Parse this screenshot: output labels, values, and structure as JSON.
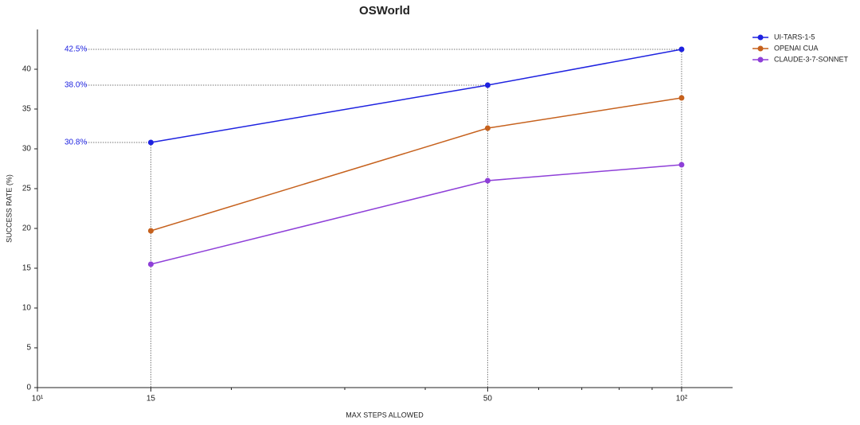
{
  "chart_data": {
    "type": "line",
    "title": "OSWorld",
    "x_label": "MAX STEPS ALLOWED",
    "y_label": "SUCCESS RATE (%)",
    "x": [
      15,
      50,
      100
    ],
    "xscale": "log",
    "xlim": [
      10,
      120
    ],
    "xticks": [
      {
        "value": 10,
        "label": "10¹"
      },
      15,
      50,
      {
        "value": 100,
        "label": "10²"
      }
    ],
    "xminor_ticks": [
      20,
      30,
      40,
      60,
      70,
      80,
      90
    ],
    "ylim": [
      0,
      45
    ],
    "yticks": [
      0,
      5,
      10,
      15,
      20,
      25,
      30,
      35,
      40
    ],
    "grid": false,
    "legend": "upper right",
    "series": [
      {
        "name": "UI-TARS-1-5",
        "color": "#1e22e0",
        "values": [
          30.8,
          38.0,
          42.5
        ],
        "value_labels": [
          "30.8%",
          "38.0%",
          "42.5%"
        ]
      },
      {
        "name": "OPENAI CUA",
        "color": "#c6611d",
        "values": [
          19.7,
          32.6,
          36.4
        ]
      },
      {
        "name": "CLAUDE-3-7-SONNET",
        "color": "#8e3fd8",
        "values": [
          15.5,
          26.0,
          28.0
        ]
      }
    ]
  }
}
